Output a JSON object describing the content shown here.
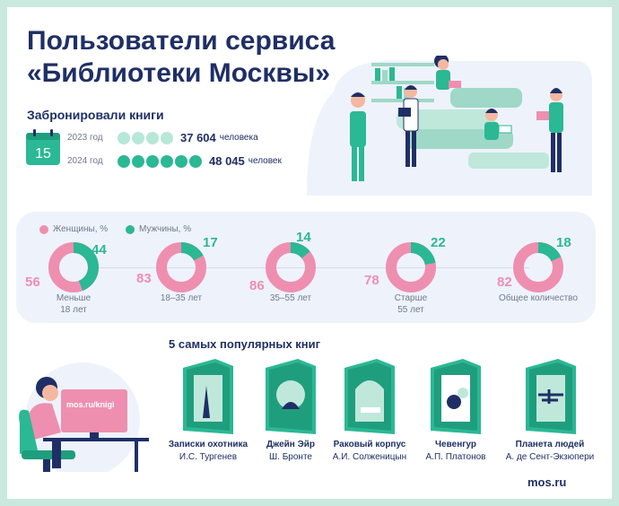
{
  "title_line1": "Пользователи сервиса",
  "title_line2": "«Библиотеки Москвы»",
  "booked": {
    "label": "Забронировали книги",
    "calendar_day": "15",
    "rows": [
      {
        "year": "2023 год",
        "value": "37 604",
        "unit": "человека",
        "dots_filled": 4,
        "dot_color": "#b7e7d7"
      },
      {
        "year": "2024 год",
        "value": "48 045",
        "unit": "человек",
        "dots_filled": 6,
        "dot_color": "#2bb894"
      }
    ]
  },
  "legend": {
    "women": "Женщины, %",
    "men": "Мужчины, %"
  },
  "colors": {
    "women": "#ee8fb0",
    "men": "#2bb894",
    "accent": "#1f2f66",
    "panel": "#eef2fb"
  },
  "groups": [
    {
      "label_line1": "Меньше",
      "label_line2": "18 лет",
      "women": "56",
      "men": "44",
      "men_fraction": 0.44
    },
    {
      "label_line1": "18–35 лет",
      "label_line2": "",
      "women": "83",
      "men": "17",
      "men_fraction": 0.17
    },
    {
      "label_line1": "35–55 лет",
      "label_line2": "",
      "women": "86",
      "men": "14",
      "men_fraction": 0.14
    },
    {
      "label_line1": "Старше",
      "label_line2": "55 лет",
      "women": "78",
      "men": "22",
      "men_fraction": 0.22
    },
    {
      "label_line1": "Общее количество",
      "label_line2": "",
      "women": "82",
      "men": "18",
      "men_fraction": 0.18
    }
  ],
  "books_header": "5 самых популярных книг",
  "books": [
    {
      "title": "Записки охотника",
      "author": "И.С. Тургенев"
    },
    {
      "title": "Джейн Эйр",
      "author": "Ш. Бронте"
    },
    {
      "title": "Раковый корпус",
      "author": "А.И. Солженицын"
    },
    {
      "title": "Чевенгур",
      "author": "А.П. Платонов"
    },
    {
      "title": "Планета людей",
      "author": "А. де Сент-Экзюпери"
    }
  ],
  "screen_url": "mos.ru/knigi",
  "footer": "mos.ru"
}
